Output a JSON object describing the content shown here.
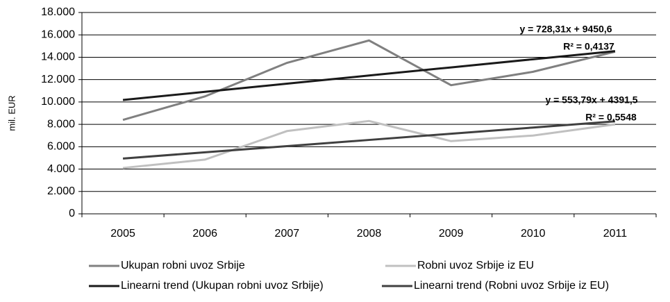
{
  "chart_data": {
    "type": "line",
    "ylabel": "mil. EUR",
    "categories": [
      "2005",
      "2006",
      "2007",
      "2008",
      "2009",
      "2010",
      "2011"
    ],
    "series": [
      {
        "name": "Ukupan robni uvoz Srbije",
        "color": "#808080",
        "values": [
          8400,
          10500,
          13500,
          15500,
          11500,
          12700,
          14500
        ]
      },
      {
        "name": "Robni uvoz Srbije iz EU",
        "color": "#c0c0c0",
        "values": [
          4100,
          4850,
          7400,
          8300,
          6500,
          7000,
          8000
        ]
      },
      {
        "name": "Linearni trend (Ukupan robni uvoz Srbije)",
        "color": "#1a1a1a",
        "values": [
          10178.91,
          10907.22,
          11635.53,
          12363.84,
          13092.15,
          13820.46,
          14548.77
        ]
      },
      {
        "name": "Linearni trend (Robni uvoz Srbije iz EU)",
        "color": "#404040",
        "values": [
          4945.29,
          5499.08,
          6052.87,
          6606.66,
          7160.45,
          7714.24,
          8268.03
        ]
      }
    ],
    "annotations": [
      "y = 728,31x + 9450,6",
      "R² = 0,4137",
      "y = 553,79x + 4391,5",
      "R² = 0,5548"
    ],
    "ylim": [
      0,
      18000
    ],
    "yticks": [
      0,
      {
        "value": 2000,
        "label": "2.000"
      },
      {
        "value": 4000,
        "label": "4.000"
      },
      {
        "value": 6000,
        "label": "6.000"
      },
      {
        "value": 8000,
        "label": "8.000"
      },
      {
        "value": 10000,
        "label": "10.000"
      },
      {
        "value": 12000,
        "label": "12.000"
      },
      {
        "value": 14000,
        "label": "14.000"
      },
      {
        "value": 16000,
        "label": "16.000"
      },
      {
        "value": 18000,
        "label": "18.000"
      }
    ],
    "grid": true
  }
}
